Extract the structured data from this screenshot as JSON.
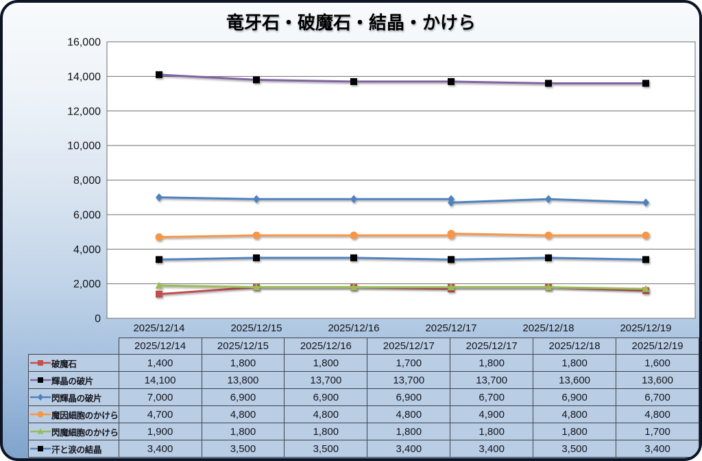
{
  "chart_data": {
    "type": "line",
    "title": "竜牙石・破魔石・結晶・かけら",
    "xlabel": "",
    "ylabel": "",
    "ylim": [
      0,
      16000
    ],
    "ytick_step": 2000,
    "grid": "horizontal",
    "legend_position": "table-left",
    "x_labels": [
      "2025/12/14",
      "2025/12/15",
      "2025/12/16",
      "2025/12/17",
      "2025/12/18",
      "2025/12/19"
    ],
    "column_day_index": [
      0,
      1,
      2,
      3,
      3,
      4,
      5
    ],
    "series": [
      {
        "id": "hamaishi",
        "name": "破魔石",
        "color": "#C0504D",
        "marker": "square",
        "marker_color": "#C0504D",
        "values": [
          1400,
          1800,
          1800,
          1700,
          1800,
          1800,
          1600
        ]
      },
      {
        "id": "kisho-no-hahen",
        "name": "輝晶の破片",
        "color": "#8064A2",
        "marker": "square",
        "marker_color": "#000000",
        "values": [
          14100,
          13800,
          13700,
          13700,
          13700,
          13600,
          13600
        ]
      },
      {
        "id": "senkisho-no-hahen",
        "name": "閃輝晶の破片",
        "color": "#4F81BD",
        "marker": "diamond",
        "marker_color": "#4F81BD",
        "values": [
          7000,
          6900,
          6900,
          6900,
          6700,
          6900,
          6700
        ]
      },
      {
        "id": "main-saibo-no-kakera",
        "name": "魔因細胞のかけら",
        "color": "#F79646",
        "marker": "circle",
        "marker_color": "#F79646",
        "values": [
          4700,
          4800,
          4800,
          4800,
          4900,
          4800,
          4800
        ]
      },
      {
        "id": "senma-saibo-no-kakera",
        "name": "閃魔細胞のかけら",
        "color": "#9BBB59",
        "marker": "triangle",
        "marker_color": "#9BBB59",
        "values": [
          1900,
          1800,
          1800,
          1800,
          1800,
          1800,
          1700
        ]
      },
      {
        "id": "ase-to-namida-no-kessho",
        "name": "汗と涙の結晶",
        "color": "#4F81BD",
        "marker": "square",
        "marker_color": "#000000",
        "values": [
          3400,
          3500,
          3500,
          3400,
          3400,
          3500,
          3400
        ]
      }
    ]
  },
  "table": {
    "columns": [
      "2025/12/14",
      "2025/12/15",
      "2025/12/16",
      "2025/12/17",
      "2025/12/17",
      "2025/12/18",
      "2025/12/19"
    ],
    "rows": [
      {
        "label": "破魔石",
        "values": [
          "1,400",
          "1,800",
          "1,800",
          "1,700",
          "1,800",
          "1,800",
          "1,600"
        ]
      },
      {
        "label": "輝晶の破片",
        "values": [
          "14,100",
          "13,800",
          "13,700",
          "13,700",
          "13,700",
          "13,600",
          "13,600"
        ]
      },
      {
        "label": "閃輝晶の破片",
        "values": [
          "7,000",
          "6,900",
          "6,900",
          "6,900",
          "6,700",
          "6,900",
          "6,700"
        ]
      },
      {
        "label": "魔因細胞のかけら",
        "values": [
          "4,700",
          "4,800",
          "4,800",
          "4,800",
          "4,900",
          "4,800",
          "4,800"
        ]
      },
      {
        "label": "閃魔細胞のかけら",
        "values": [
          "1,900",
          "1,800",
          "1,800",
          "1,800",
          "1,800",
          "1,800",
          "1,700"
        ]
      },
      {
        "label": "汗と涙の結晶",
        "values": [
          "3,400",
          "3,500",
          "3,500",
          "3,400",
          "3,400",
          "3,500",
          "3,400"
        ]
      }
    ]
  }
}
